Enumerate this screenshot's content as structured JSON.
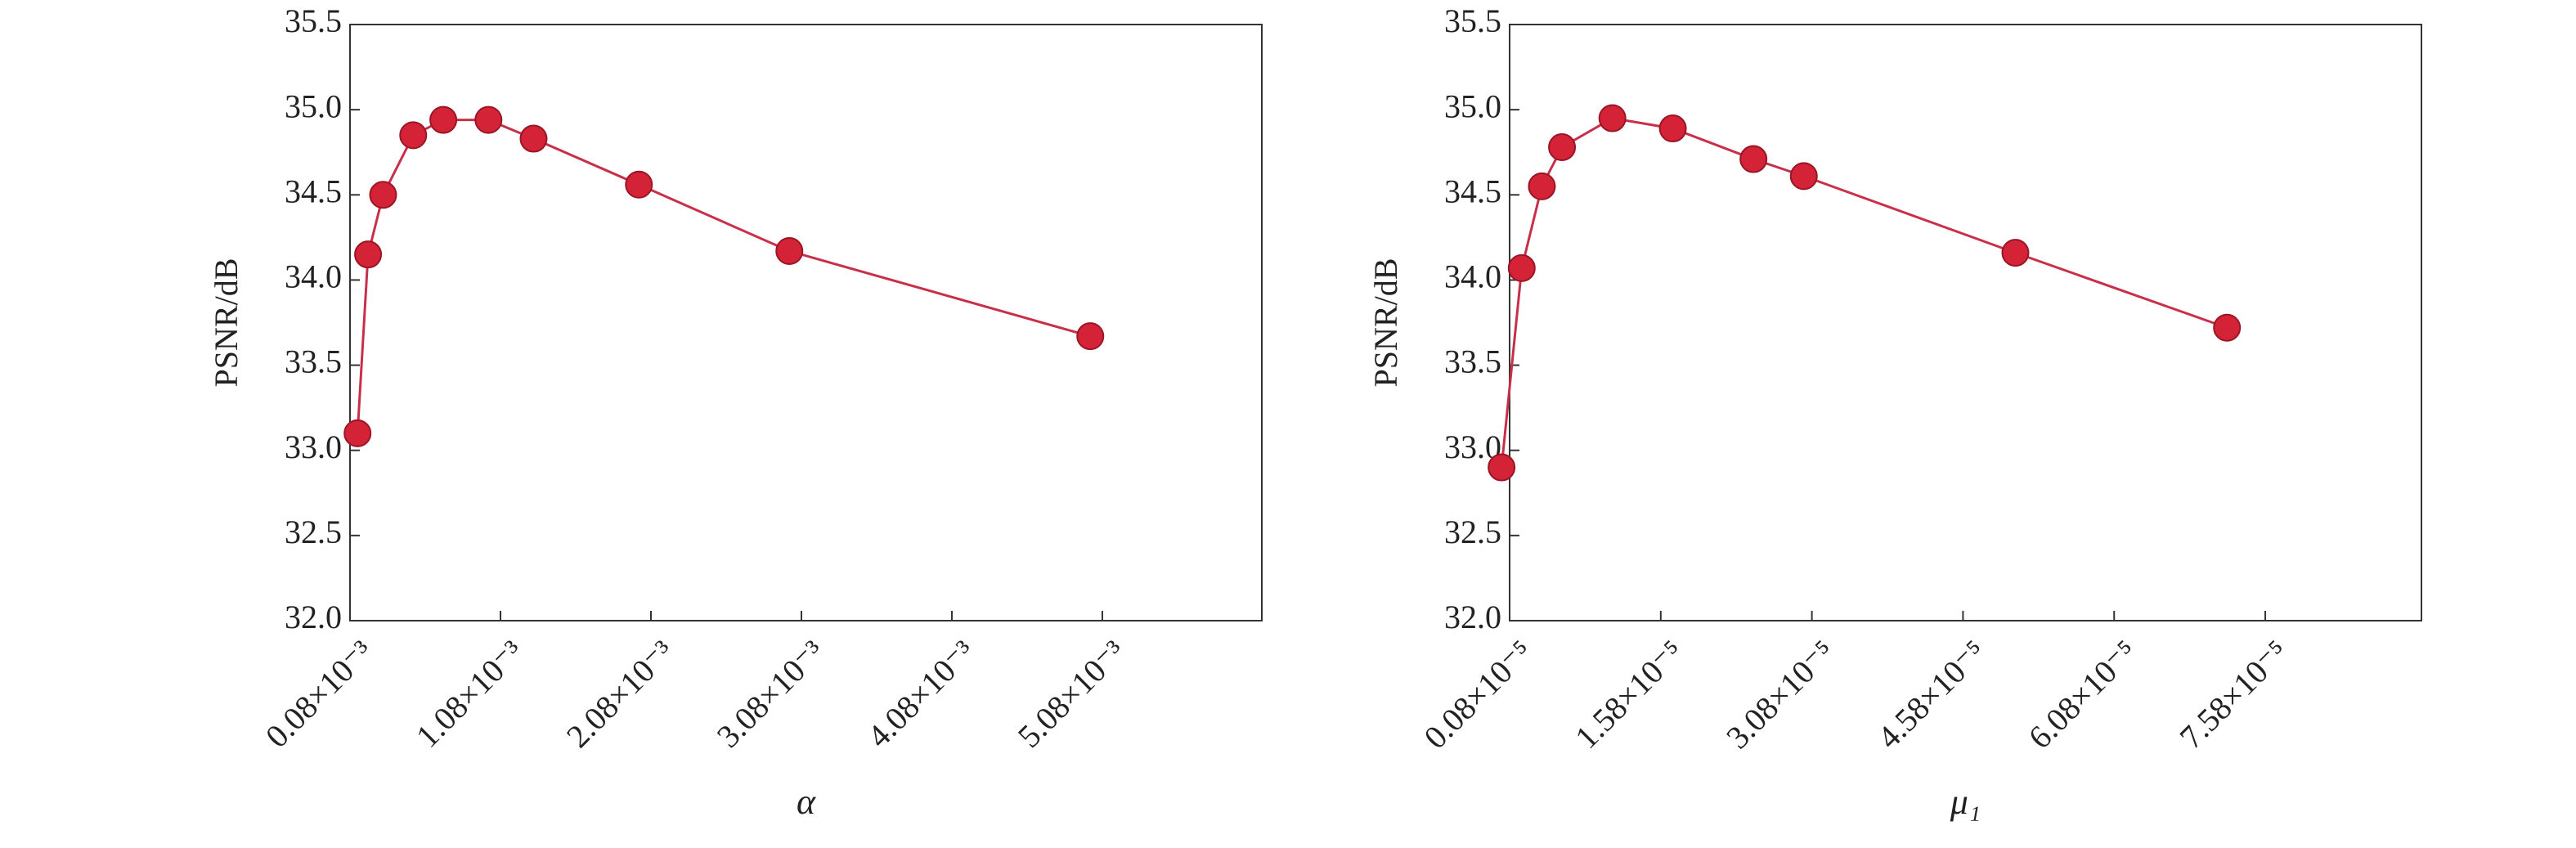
{
  "chart_data": [
    {
      "type": "line",
      "x_label": "α",
      "y_label": "PSNR/dB",
      "series": [
        {
          "color": "#d42336",
          "x": [
            0.13,
            0.2,
            0.3,
            0.5,
            0.7,
            1.0,
            1.3,
            2.0,
            3.0,
            5.0
          ],
          "values": [
            33.1,
            34.15,
            34.5,
            34.85,
            34.94,
            34.94,
            34.83,
            34.56,
            34.17,
            33.67
          ]
        }
      ],
      "xlim": [
        0.08,
        6.14
      ],
      "ylim": [
        32.0,
        35.5
      ],
      "xticks": [
        {
          "value": 0.08,
          "label": "0.08×10⁻³"
        },
        {
          "value": 1.08,
          "label": "1.08×10⁻³"
        },
        {
          "value": 2.08,
          "label": "2.08×10⁻³"
        },
        {
          "value": 3.08,
          "label": "3.08×10⁻³"
        },
        {
          "value": 4.08,
          "label": "4.08×10⁻³"
        },
        {
          "value": 5.08,
          "label": "5.08×10⁻³"
        }
      ],
      "yticks": [
        {
          "value": 32.0,
          "label": "32.0"
        },
        {
          "value": 32.5,
          "label": "32.5"
        },
        {
          "value": 33.0,
          "label": "33.0"
        },
        {
          "value": 33.5,
          "label": "33.5"
        },
        {
          "value": 34.0,
          "label": "34.0"
        },
        {
          "value": 34.5,
          "label": "34.5"
        },
        {
          "value": 35.0,
          "label": "35.0"
        },
        {
          "value": 35.5,
          "label": "35.5"
        }
      ]
    },
    {
      "type": "line",
      "x_label": "μ₁",
      "y_label": "PSNR/dB",
      "series": [
        {
          "color": "#d42336",
          "x": [
            0.0,
            0.2,
            0.4,
            0.6,
            1.1,
            1.7,
            2.5,
            3.0,
            5.1,
            7.2
          ],
          "values": [
            32.9,
            34.07,
            34.55,
            34.78,
            34.95,
            34.89,
            34.71,
            34.61,
            34.16,
            33.72
          ]
        }
      ],
      "xlim": [
        0.08,
        9.13
      ],
      "ylim": [
        32.0,
        35.5
      ],
      "xticks": [
        {
          "value": 0.08,
          "label": "0.08×10⁻⁵"
        },
        {
          "value": 1.58,
          "label": "1.58×10⁻⁵"
        },
        {
          "value": 3.08,
          "label": "3.08×10⁻⁵"
        },
        {
          "value": 4.58,
          "label": "4.58×10⁻⁵"
        },
        {
          "value": 6.08,
          "label": "6.08×10⁻⁵"
        },
        {
          "value": 7.58,
          "label": "7.58×10⁻⁵"
        }
      ],
      "yticks": [
        {
          "value": 32.0,
          "label": "32.0"
        },
        {
          "value": 32.5,
          "label": "32.5"
        },
        {
          "value": 33.0,
          "label": "33.0"
        },
        {
          "value": 33.5,
          "label": "33.5"
        },
        {
          "value": 34.0,
          "label": "34.0"
        },
        {
          "value": 34.5,
          "label": "34.5"
        },
        {
          "value": 35.0,
          "label": "35.0"
        },
        {
          "value": 35.5,
          "label": "35.5"
        }
      ]
    }
  ]
}
